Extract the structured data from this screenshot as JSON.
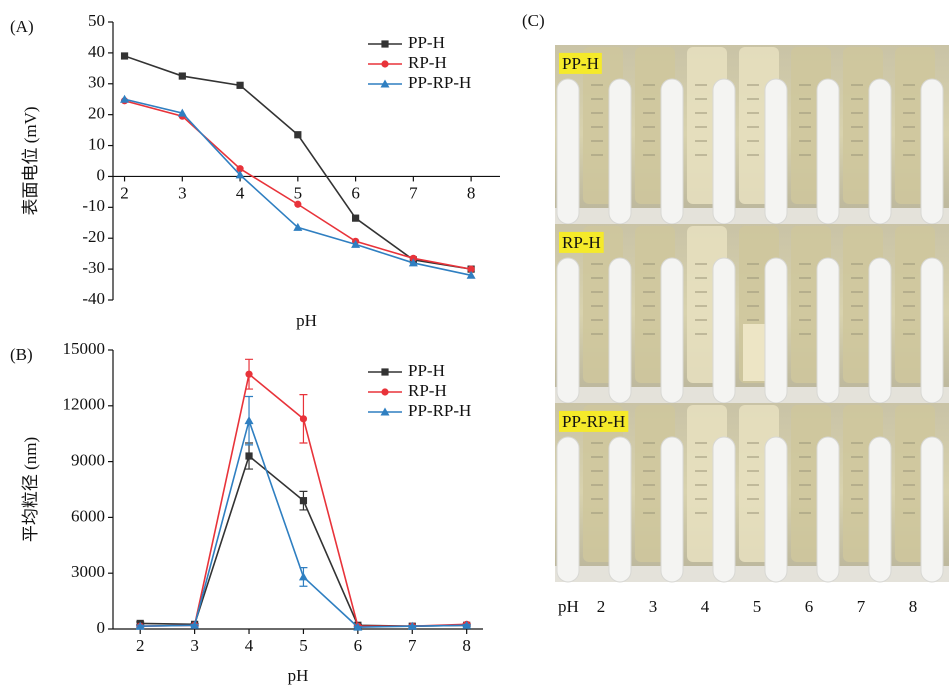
{
  "chart_data": [
    {
      "type": "line",
      "title": "(A)",
      "ylabel": "表面电位 (mV)",
      "xlabel": "pH",
      "x": [
        2,
        3,
        4,
        5,
        6,
        7,
        8
      ],
      "xlim": [
        1.8,
        8.5
      ],
      "xticks": [
        2,
        3,
        4,
        5,
        6,
        7,
        8
      ],
      "ylim": [
        -40,
        50
      ],
      "yticks": [
        -40,
        -30,
        -20,
        -10,
        0,
        10,
        20,
        30,
        40,
        50
      ],
      "legend": "upper right",
      "series": [
        {
          "name": "PP-H",
          "color": "#333333",
          "marker": "square",
          "values": [
            39,
            32.5,
            29.5,
            13.5,
            -13.5,
            -27,
            -30
          ]
        },
        {
          "name": "RP-H",
          "color": "#e8333a",
          "marker": "circle",
          "values": [
            24.5,
            19.5,
            2.5,
            -9,
            -21,
            -26.5,
            -30
          ]
        },
        {
          "name": "PP-RP-H",
          "color": "#2f7fc1",
          "marker": "triangle",
          "values": [
            25,
            20.5,
            0.5,
            -16.5,
            -22,
            -28,
            -32
          ]
        }
      ]
    },
    {
      "type": "line",
      "title": "(B)",
      "ylabel": "平均粒径 (nm)",
      "xlabel": "pH",
      "x": [
        2,
        3,
        4,
        5,
        6,
        7,
        8
      ],
      "xlim": [
        1.5,
        8.3
      ],
      "xticks": [
        2,
        3,
        4,
        5,
        6,
        7,
        8
      ],
      "ylim": [
        0,
        15000
      ],
      "yticks": [
        0,
        3000,
        6000,
        9000,
        12000,
        15000
      ],
      "legend": "upper right",
      "series": [
        {
          "name": "PP-H",
          "color": "#333333",
          "marker": "square",
          "values": [
            300,
            250,
            9300,
            6900,
            200,
            150,
            200
          ],
          "errors": [
            80,
            50,
            700,
            500,
            50,
            30,
            50
          ]
        },
        {
          "name": "RP-H",
          "color": "#e8333a",
          "marker": "circle",
          "values": [
            150,
            200,
            13700,
            11300,
            150,
            150,
            250
          ],
          "errors": [
            50,
            50,
            800,
            1300,
            40,
            30,
            50
          ]
        },
        {
          "name": "PP-RP-H",
          "color": "#2f7fc1",
          "marker": "triangle",
          "values": [
            150,
            200,
            11200,
            2800,
            100,
            150,
            200
          ],
          "errors": [
            50,
            50,
            1300,
            500,
            30,
            30,
            40
          ]
        }
      ]
    }
  ],
  "photo": {
    "title": "(C)",
    "rows": [
      "PP-H",
      "RP-H",
      "PP-RP-H"
    ],
    "axis_label": "pH",
    "categories": [
      "2",
      "3",
      "4",
      "5",
      "6",
      "7",
      "8"
    ]
  }
}
